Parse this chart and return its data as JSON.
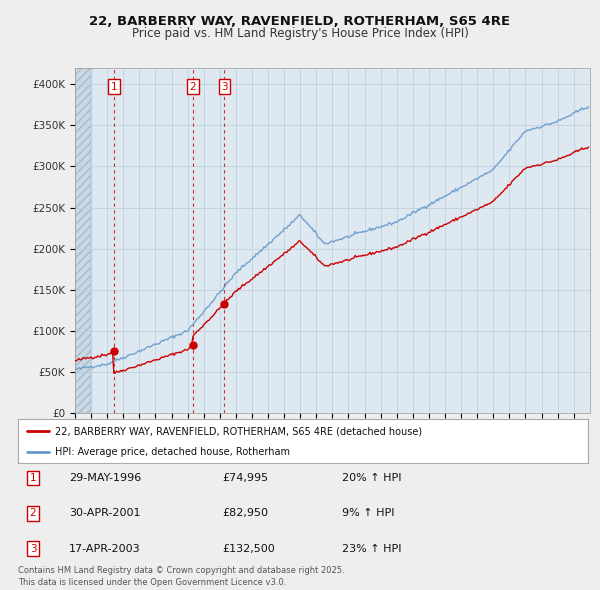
{
  "title": "22, BARBERRY WAY, RAVENFIELD, ROTHERHAM, S65 4RE",
  "subtitle": "Price paid vs. HM Land Registry's House Price Index (HPI)",
  "sale_dates_num": [
    1996.413,
    2001.329,
    2003.288
  ],
  "sale_prices": [
    74995,
    82950,
    132500
  ],
  "sale_labels": [
    "1",
    "2",
    "3"
  ],
  "legend_line1": "22, BARBERRY WAY, RAVENFIELD, ROTHERHAM, S65 4RE (detached house)",
  "legend_line2": "HPI: Average price, detached house, Rotherham",
  "table_rows": [
    [
      "1",
      "29-MAY-1996",
      "£74,995",
      "20% ↑ HPI"
    ],
    [
      "2",
      "30-APR-2001",
      "£82,950",
      "9% ↑ HPI"
    ],
    [
      "3",
      "17-APR-2003",
      "£132,500",
      "23% ↑ HPI"
    ]
  ],
  "footer": "Contains HM Land Registry data © Crown copyright and database right 2025.\nThis data is licensed under the Open Government Licence v3.0.",
  "price_color": "#cc0000",
  "hpi_color": "#6699cc",
  "ylim": [
    0,
    420000
  ],
  "yticks": [
    0,
    50000,
    100000,
    150000,
    200000,
    250000,
    300000,
    350000,
    400000
  ],
  "background_color": "#eeeeee",
  "plot_bg_color": "#dde8f0",
  "grid_color": "#bbccdd",
  "hatch_color": "#c8d8e4"
}
